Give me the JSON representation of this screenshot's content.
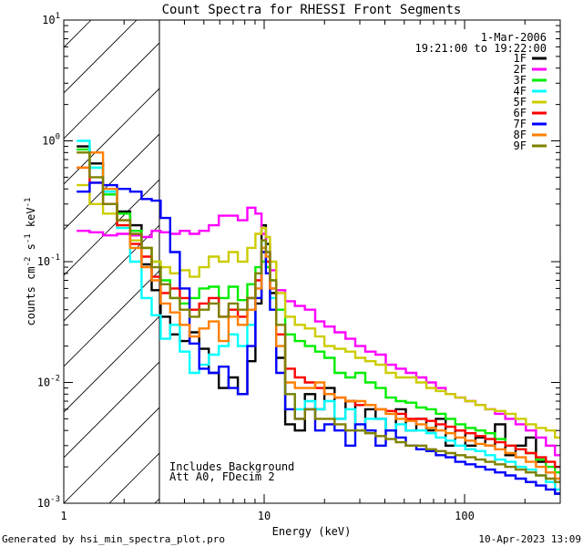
{
  "chart_data": {
    "type": "line",
    "title": "Count Spectra for RHESSI Front Segments",
    "xlabel": "Energy (keV)",
    "ylabel_parts": [
      "counts cm",
      "-2",
      " s",
      "-1",
      " keV",
      "-1"
    ],
    "xscale": "log",
    "yscale": "log",
    "xlim": [
      1,
      300
    ],
    "ylim": [
      0.001,
      10
    ],
    "x_ticks": [
      {
        "v": 1,
        "label": "1"
      },
      {
        "v": 10,
        "label": "10"
      },
      {
        "v": 100,
        "label": "100"
      }
    ],
    "y_ticks": [
      {
        "v": 0.001,
        "base": "10",
        "exp": "-3"
      },
      {
        "v": 0.01,
        "base": "10",
        "exp": "-2"
      },
      {
        "v": 0.1,
        "base": "10",
        "exp": "-1"
      },
      {
        "v": 1,
        "base": "10",
        "exp": "0"
      },
      {
        "v": 10,
        "base": "10",
        "exp": "1"
      }
    ],
    "hatched_region_max_energy": 3,
    "date": "1-Mar-2006",
    "time_range": "19:21:00 to 19:22:00",
    "annotation_lines": [
      "Includes Background",
      "Att A0, FDecim 2"
    ],
    "footer_left": "Generated by hsi_min_spectra_plot.pro",
    "footer_right": "10-Apr-2023 13:09",
    "colors": {
      "1F": "#000000",
      "2F": "#ff00ff",
      "3F": "#00ee00",
      "4F": "#00ffff",
      "5F": "#cccc00",
      "6F": "#ff0000",
      "7F": "#0000ff",
      "8F": "#ff8000",
      "9F": "#808000"
    },
    "series": [
      {
        "name": "1F",
        "color": "#000000",
        "x": [
          1.25,
          1.45,
          1.7,
          2.0,
          2.3,
          2.6,
          2.9,
          3.2,
          3.6,
          4.0,
          4.5,
          5.0,
          5.6,
          6.3,
          7.0,
          7.8,
          8.7,
          9.4,
          10.0,
          10.4,
          11.0,
          12.0,
          13.5,
          15,
          17,
          19,
          21,
          24,
          27,
          30,
          34,
          38,
          43,
          48,
          54,
          61,
          68,
          76,
          85,
          95,
          107,
          120,
          134,
          150,
          170,
          190,
          215,
          240,
          270,
          295
        ],
        "y": [
          0.9,
          0.65,
          0.38,
          0.26,
          0.2,
          0.095,
          0.058,
          0.035,
          0.025,
          0.022,
          0.026,
          0.019,
          0.012,
          0.009,
          0.011,
          0.008,
          0.015,
          0.045,
          0.2,
          0.14,
          0.055,
          0.016,
          0.0045,
          0.004,
          0.008,
          0.006,
          0.009,
          0.005,
          0.007,
          0.004,
          0.006,
          0.005,
          0.004,
          0.006,
          0.004,
          0.005,
          0.004,
          0.005,
          0.003,
          0.004,
          0.003,
          0.0035,
          0.003,
          0.0045,
          0.0025,
          0.003,
          0.0035,
          0.0022,
          0.0018,
          0.0012
        ]
      },
      {
        "name": "2F",
        "color": "#ff00ff",
        "x": [
          1.25,
          1.45,
          1.7,
          2.0,
          2.3,
          2.6,
          2.9,
          3.2,
          3.6,
          4.0,
          4.5,
          5.0,
          5.6,
          6.3,
          7.0,
          7.8,
          8.7,
          9.4,
          10.0,
          10.4,
          11.0,
          12.0,
          13.5,
          15,
          17,
          19,
          21,
          24,
          27,
          30,
          34,
          38,
          43,
          48,
          54,
          61,
          68,
          76,
          85,
          95,
          107,
          120,
          134,
          150,
          170,
          190,
          215,
          240,
          270,
          295
        ],
        "y": [
          0.18,
          0.175,
          0.165,
          0.17,
          0.165,
          0.16,
          0.18,
          0.175,
          0.17,
          0.18,
          0.17,
          0.18,
          0.2,
          0.24,
          0.24,
          0.22,
          0.28,
          0.25,
          0.17,
          0.12,
          0.085,
          0.058,
          0.047,
          0.043,
          0.04,
          0.032,
          0.029,
          0.026,
          0.023,
          0.02,
          0.018,
          0.017,
          0.014,
          0.013,
          0.012,
          0.011,
          0.01,
          0.009,
          0.008,
          0.0075,
          0.007,
          0.0065,
          0.006,
          0.0055,
          0.005,
          0.0045,
          0.004,
          0.0035,
          0.003,
          0.0025
        ]
      },
      {
        "name": "3F",
        "color": "#00ee00",
        "x": [
          1.25,
          1.45,
          1.7,
          2.0,
          2.3,
          2.6,
          2.9,
          3.2,
          3.6,
          4.0,
          4.5,
          5.0,
          5.6,
          6.3,
          7.0,
          7.8,
          8.7,
          9.4,
          10.0,
          10.4,
          11.0,
          12.0,
          13.5,
          15,
          17,
          19,
          21,
          24,
          27,
          30,
          34,
          38,
          43,
          48,
          54,
          61,
          68,
          76,
          85,
          95,
          107,
          120,
          134,
          150,
          170,
          190,
          215,
          240,
          270,
          295
        ],
        "y": [
          0.85,
          0.6,
          0.36,
          0.25,
          0.18,
          0.13,
          0.1,
          0.07,
          0.05,
          0.045,
          0.05,
          0.06,
          0.062,
          0.05,
          0.062,
          0.048,
          0.065,
          0.09,
          0.1,
          0.09,
          0.07,
          0.04,
          0.025,
          0.022,
          0.02,
          0.018,
          0.016,
          0.012,
          0.011,
          0.012,
          0.01,
          0.009,
          0.0075,
          0.007,
          0.0068,
          0.0062,
          0.006,
          0.0055,
          0.005,
          0.0045,
          0.0042,
          0.004,
          0.0038,
          0.0034,
          0.003,
          0.0028,
          0.0026,
          0.0023,
          0.002,
          0.0018
        ]
      },
      {
        "name": "4F",
        "color": "#00ffff",
        "x": [
          1.25,
          1.45,
          1.7,
          2.0,
          2.3,
          2.6,
          2.9,
          3.2,
          3.6,
          4.0,
          4.5,
          5.0,
          5.6,
          6.3,
          7.0,
          7.8,
          8.7,
          9.4,
          10.0,
          10.4,
          11.0,
          12.0,
          13.5,
          15,
          17,
          19,
          21,
          24,
          27,
          30,
          34,
          38,
          43,
          48,
          54,
          61,
          68,
          76,
          85,
          95,
          107,
          120,
          134,
          150,
          170,
          190,
          215,
          240,
          270,
          295
        ],
        "y": [
          1.0,
          0.6,
          0.38,
          0.19,
          0.1,
          0.05,
          0.036,
          0.023,
          0.03,
          0.018,
          0.012,
          0.014,
          0.017,
          0.02,
          0.025,
          0.02,
          0.03,
          0.06,
          0.15,
          0.1,
          0.05,
          0.02,
          0.008,
          0.006,
          0.007,
          0.006,
          0.007,
          0.005,
          0.006,
          0.004,
          0.005,
          0.005,
          0.004,
          0.0045,
          0.004,
          0.004,
          0.0038,
          0.0035,
          0.0033,
          0.003,
          0.0028,
          0.0027,
          0.0025,
          0.0023,
          0.0022,
          0.002,
          0.0019,
          0.0017,
          0.0015,
          0.0013
        ]
      },
      {
        "name": "5F",
        "color": "#cccc00",
        "x": [
          1.25,
          1.45,
          1.7,
          2.0,
          2.3,
          2.6,
          2.9,
          3.2,
          3.6,
          4.0,
          4.5,
          5.0,
          5.6,
          6.3,
          7.0,
          7.8,
          8.7,
          9.4,
          10.0,
          10.4,
          11.0,
          12.0,
          13.5,
          15,
          17,
          19,
          21,
          24,
          27,
          30,
          34,
          38,
          43,
          48,
          54,
          61,
          68,
          76,
          85,
          95,
          107,
          120,
          134,
          150,
          170,
          190,
          215,
          240,
          270,
          295
        ],
        "y": [
          0.43,
          0.3,
          0.25,
          0.2,
          0.15,
          0.13,
          0.1,
          0.09,
          0.08,
          0.085,
          0.075,
          0.09,
          0.11,
          0.1,
          0.12,
          0.1,
          0.13,
          0.17,
          0.19,
          0.16,
          0.1,
          0.055,
          0.035,
          0.03,
          0.028,
          0.024,
          0.02,
          0.019,
          0.018,
          0.016,
          0.015,
          0.014,
          0.012,
          0.011,
          0.011,
          0.01,
          0.009,
          0.0085,
          0.008,
          0.0075,
          0.007,
          0.0065,
          0.006,
          0.0058,
          0.0055,
          0.005,
          0.0045,
          0.0042,
          0.004,
          0.0035
        ]
      },
      {
        "name": "6F",
        "color": "#ff0000",
        "x": [
          1.25,
          1.45,
          1.7,
          2.0,
          2.3,
          2.6,
          2.9,
          3.2,
          3.6,
          4.0,
          4.5,
          5.0,
          5.6,
          6.3,
          7.0,
          7.8,
          8.7,
          9.4,
          10.0,
          10.4,
          11.0,
          12.0,
          13.5,
          15,
          17,
          19,
          21,
          24,
          27,
          30,
          34,
          38,
          43,
          48,
          54,
          61,
          68,
          76,
          85,
          95,
          107,
          120,
          134,
          150,
          170,
          190,
          215,
          240,
          270,
          295
        ],
        "y": [
          0.6,
          0.45,
          0.3,
          0.2,
          0.14,
          0.11,
          0.075,
          0.055,
          0.06,
          0.05,
          0.04,
          0.045,
          0.05,
          0.035,
          0.04,
          0.035,
          0.05,
          0.07,
          0.12,
          0.1,
          0.06,
          0.025,
          0.013,
          0.011,
          0.01,
          0.009,
          0.008,
          0.0075,
          0.007,
          0.0065,
          0.0065,
          0.006,
          0.0058,
          0.0055,
          0.005,
          0.005,
          0.0048,
          0.0045,
          0.0043,
          0.004,
          0.0038,
          0.0036,
          0.0034,
          0.0032,
          0.003,
          0.0028,
          0.0026,
          0.0024,
          0.0022,
          0.002
        ]
      },
      {
        "name": "7F",
        "color": "#0000ff",
        "x": [
          1.25,
          1.45,
          1.7,
          2.0,
          2.3,
          2.6,
          2.9,
          3.2,
          3.6,
          4.0,
          4.5,
          5.0,
          5.6,
          6.3,
          7.0,
          7.8,
          8.7,
          9.4,
          10.0,
          10.4,
          11.0,
          12.0,
          13.5,
          15,
          17,
          19,
          21,
          24,
          27,
          30,
          34,
          38,
          43,
          48,
          54,
          61,
          68,
          76,
          85,
          95,
          107,
          120,
          134,
          150,
          170,
          190,
          215,
          240,
          270,
          295
        ],
        "y": [
          0.38,
          0.45,
          0.43,
          0.4,
          0.38,
          0.33,
          0.32,
          0.23,
          0.12,
          0.06,
          0.021,
          0.013,
          0.012,
          0.0135,
          0.009,
          0.008,
          0.02,
          0.05,
          0.12,
          0.08,
          0.04,
          0.012,
          0.006,
          0.005,
          0.006,
          0.004,
          0.0045,
          0.004,
          0.003,
          0.0045,
          0.004,
          0.003,
          0.004,
          0.0035,
          0.003,
          0.0028,
          0.0027,
          0.0025,
          0.0024,
          0.0022,
          0.0021,
          0.002,
          0.0019,
          0.0018,
          0.0017,
          0.0016,
          0.0015,
          0.0014,
          0.0013,
          0.0012
        ]
      },
      {
        "name": "8F",
        "color": "#ff8000",
        "x": [
          1.25,
          1.45,
          1.7,
          2.0,
          2.3,
          2.6,
          2.9,
          3.2,
          3.6,
          4.0,
          4.5,
          5.0,
          5.6,
          6.3,
          7.0,
          7.8,
          8.7,
          9.4,
          10.0,
          10.4,
          11.0,
          12.0,
          13.5,
          15,
          17,
          19,
          21,
          24,
          27,
          30,
          34,
          38,
          43,
          48,
          54,
          61,
          68,
          76,
          85,
          95,
          107,
          120,
          134,
          150,
          170,
          190,
          215,
          240,
          270,
          295
        ],
        "y": [
          0.6,
          0.8,
          0.4,
          0.22,
          0.13,
          0.09,
          0.07,
          0.045,
          0.038,
          0.03,
          0.024,
          0.028,
          0.032,
          0.022,
          0.035,
          0.03,
          0.04,
          0.06,
          0.13,
          0.11,
          0.06,
          0.02,
          0.01,
          0.009,
          0.009,
          0.01,
          0.008,
          0.0075,
          0.007,
          0.007,
          0.0065,
          0.006,
          0.0055,
          0.005,
          0.0048,
          0.0045,
          0.0042,
          0.004,
          0.0038,
          0.0035,
          0.0033,
          0.0031,
          0.003,
          0.0028,
          0.0026,
          0.0024,
          0.0022,
          0.002,
          0.0018,
          0.0016
        ]
      },
      {
        "name": "9F",
        "color": "#808000",
        "x": [
          1.25,
          1.45,
          1.7,
          2.0,
          2.3,
          2.6,
          2.9,
          3.2,
          3.6,
          4.0,
          4.5,
          5.0,
          5.6,
          6.3,
          7.0,
          7.8,
          8.7,
          9.4,
          10.0,
          10.4,
          11.0,
          12.0,
          13.5,
          15,
          17,
          19,
          21,
          24,
          27,
          30,
          34,
          38,
          43,
          48,
          54,
          61,
          68,
          76,
          85,
          95,
          107,
          120,
          134,
          150,
          170,
          190,
          215,
          240,
          270,
          295
        ],
        "y": [
          0.8,
          0.5,
          0.3,
          0.22,
          0.17,
          0.13,
          0.09,
          0.065,
          0.05,
          0.04,
          0.035,
          0.04,
          0.045,
          0.035,
          0.045,
          0.04,
          0.05,
          0.08,
          0.15,
          0.12,
          0.07,
          0.03,
          0.008,
          0.005,
          0.006,
          0.005,
          0.005,
          0.0045,
          0.004,
          0.004,
          0.0038,
          0.0036,
          0.0034,
          0.0032,
          0.003,
          0.003,
          0.0028,
          0.0027,
          0.0026,
          0.0025,
          0.0024,
          0.0023,
          0.0022,
          0.0021,
          0.002,
          0.0019,
          0.0018,
          0.0017,
          0.0016,
          0.0015
        ]
      }
    ]
  }
}
